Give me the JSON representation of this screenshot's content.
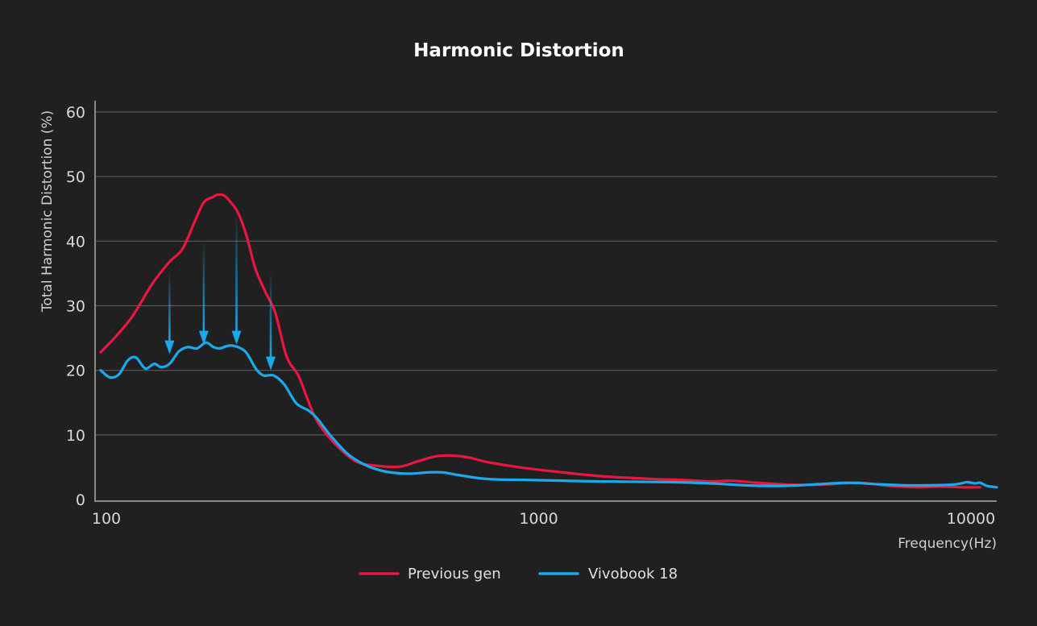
{
  "chart_data": {
    "type": "line",
    "title": "Harmonic Distortion",
    "xlabel": "Frequency(Hz)",
    "ylabel": "Total Harmonic Distortion (%)",
    "x_scale": "log",
    "xlim": [
      100,
      10000
    ],
    "ylim": [
      0,
      60
    ],
    "x_ticks": [
      100,
      1000,
      10000
    ],
    "x_tick_labels": [
      "100",
      "1000",
      "10000"
    ],
    "y_ticks": [
      0,
      10,
      20,
      30,
      40,
      50,
      60
    ],
    "y_tick_labels": [
      "0",
      "10",
      "20",
      "30",
      "40",
      "50",
      "60"
    ],
    "grid": "horizontal",
    "legend_position": "bottom-center",
    "series": [
      {
        "name": "Previous gen",
        "color": "#e8173f",
        "points": [
          [
            97,
            22.8
          ],
          [
            105,
            25.2
          ],
          [
            115,
            28.4
          ],
          [
            128,
            33.5
          ],
          [
            140,
            36.8
          ],
          [
            150,
            38.8
          ],
          [
            160,
            43.0
          ],
          [
            168,
            46.0
          ],
          [
            176,
            46.8
          ],
          [
            181,
            47.2
          ],
          [
            187,
            47.1
          ],
          [
            193,
            46.2
          ],
          [
            202,
            44.3
          ],
          [
            211,
            40.8
          ],
          [
            221,
            35.8
          ],
          [
            233,
            32.2
          ],
          [
            246,
            28.9
          ],
          [
            261,
            22.2
          ],
          [
            278,
            19.2
          ],
          [
            291,
            15.8
          ],
          [
            307,
            12.2
          ],
          [
            336,
            8.8
          ],
          [
            378,
            5.9
          ],
          [
            426,
            5.2
          ],
          [
            479,
            5.1
          ],
          [
            525,
            5.9
          ],
          [
            579,
            6.7
          ],
          [
            632,
            6.8
          ],
          [
            690,
            6.5
          ],
          [
            760,
            5.8
          ],
          [
            900,
            5.0
          ],
          [
            1100,
            4.3
          ],
          [
            1400,
            3.6
          ],
          [
            1800,
            3.2
          ],
          [
            2200,
            3.0
          ],
          [
            2500,
            2.8
          ],
          [
            2800,
            2.9
          ],
          [
            3200,
            2.6
          ],
          [
            3800,
            2.3
          ],
          [
            4500,
            2.3
          ],
          [
            5500,
            2.6
          ],
          [
            6500,
            2.1
          ],
          [
            7500,
            1.9
          ],
          [
            8500,
            2.0
          ],
          [
            9500,
            1.9
          ],
          [
            10500,
            1.9
          ]
        ]
      },
      {
        "name": "Vivobook 18",
        "color": "#19aaeb",
        "points": [
          [
            97,
            20.0
          ],
          [
            102,
            18.9
          ],
          [
            107,
            19.4
          ],
          [
            112,
            21.5
          ],
          [
            117,
            22.0
          ],
          [
            123,
            20.3
          ],
          [
            129,
            21.0
          ],
          [
            134,
            20.5
          ],
          [
            140,
            21.0
          ],
          [
            147,
            22.9
          ],
          [
            154,
            23.6
          ],
          [
            162,
            23.4
          ],
          [
            170,
            24.3
          ],
          [
            177,
            23.6
          ],
          [
            183,
            23.4
          ],
          [
            191,
            23.8
          ],
          [
            197,
            23.8
          ],
          [
            206,
            23.3
          ],
          [
            212,
            22.5
          ],
          [
            222,
            20.2
          ],
          [
            231,
            19.2
          ],
          [
            244,
            19.2
          ],
          [
            258,
            17.8
          ],
          [
            275,
            14.9
          ],
          [
            293,
            13.8
          ],
          [
            307,
            12.6
          ],
          [
            331,
            9.8
          ],
          [
            361,
            7.1
          ],
          [
            393,
            5.5
          ],
          [
            431,
            4.5
          ],
          [
            469,
            4.1
          ],
          [
            506,
            4.0
          ],
          [
            554,
            4.2
          ],
          [
            600,
            4.2
          ],
          [
            650,
            3.8
          ],
          [
            727,
            3.3
          ],
          [
            800,
            3.1
          ],
          [
            1000,
            3.0
          ],
          [
            1400,
            2.8
          ],
          [
            2000,
            2.7
          ],
          [
            2500,
            2.5
          ],
          [
            3000,
            2.2
          ],
          [
            3500,
            2.1
          ],
          [
            4000,
            2.2
          ],
          [
            4500,
            2.4
          ],
          [
            5200,
            2.6
          ],
          [
            6000,
            2.4
          ],
          [
            7000,
            2.2
          ],
          [
            8000,
            2.2
          ],
          [
            9000,
            2.3
          ],
          [
            9500,
            2.5
          ],
          [
            9800,
            2.7
          ],
          [
            10200,
            2.5
          ],
          [
            10500,
            2.6
          ],
          [
            10900,
            2.1
          ],
          [
            11500,
            1.9
          ]
        ]
      }
    ],
    "annotations": [
      {
        "type": "arrow",
        "x": 140,
        "y_from": 35.5,
        "y_to": 22.5,
        "color": "#19aaeb"
      },
      {
        "type": "arrow",
        "x": 168,
        "y_from": 40.0,
        "y_to": 24.0,
        "color": "#19aaeb"
      },
      {
        "type": "arrow",
        "x": 200,
        "y_from": 44.5,
        "y_to": 24.0,
        "color": "#19aaeb"
      },
      {
        "type": "arrow",
        "x": 240,
        "y_from": 35.5,
        "y_to": 20.0,
        "color": "#19aaeb"
      }
    ]
  }
}
